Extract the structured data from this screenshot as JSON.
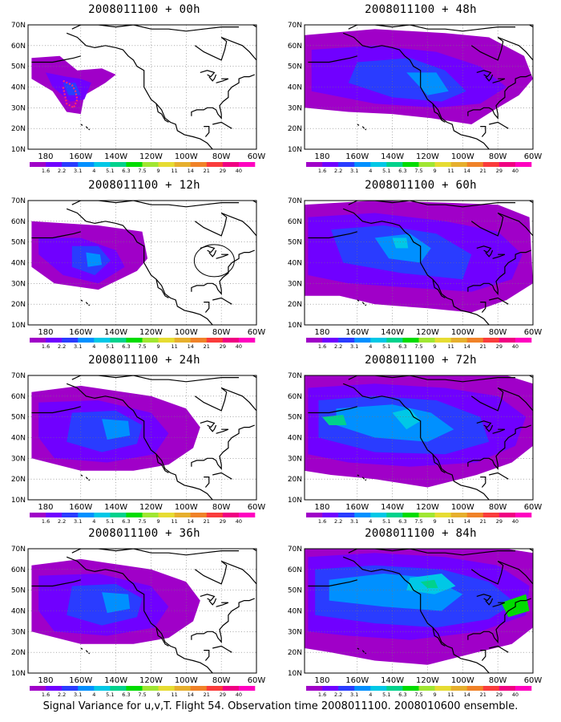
{
  "figure": {
    "caption": "Signal Variance for u,v,T. Flight 54. Observation time 2008011100. 2008010600 ensemble."
  },
  "axes": {
    "lat_labels": [
      "70N",
      "60N",
      "50N",
      "40N",
      "30N",
      "20N",
      "10N"
    ],
    "lon_labels": [
      "180",
      "160W",
      "140W",
      "120W",
      "100W",
      "80W",
      "60W"
    ],
    "lat_range": [
      10,
      70
    ],
    "lon_range": [
      -190,
      -60
    ],
    "grid": "dotted"
  },
  "colorbar": {
    "labels": [
      "1.6",
      "2.2",
      "3.1",
      "4",
      "5.1",
      "6.3",
      "7.5",
      "9",
      "11",
      "14",
      "21",
      "29",
      "40"
    ],
    "colors": [
      "#a000c8",
      "#7000ff",
      "#2a3cff",
      "#0090ff",
      "#00c8e6",
      "#00d28c",
      "#00dc00",
      "#a0e632",
      "#e6dc32",
      "#e6af2d",
      "#f08228",
      "#fa3c3c",
      "#f00082",
      "#ff00c0"
    ]
  },
  "panels": [
    {
      "id": "00h",
      "title": "2008011100 + 00h",
      "level": 1,
      "has_flight_track": true
    },
    {
      "id": "48h",
      "title": "2008011100 + 48h",
      "level": 4
    },
    {
      "id": "12h",
      "title": "2008011100 + 12h",
      "level": 2,
      "has_circle": true
    },
    {
      "id": "60h",
      "title": "2008011100 + 60h",
      "level": 5
    },
    {
      "id": "24h",
      "title": "2008011100 + 24h",
      "level": 3
    },
    {
      "id": "72h",
      "title": "2008011100 + 72h",
      "level": 6
    },
    {
      "id": "36h",
      "title": "2008011100 + 36h",
      "level": 3
    },
    {
      "id": "84h",
      "title": "2008011100 + 84h",
      "level": 7
    }
  ]
}
